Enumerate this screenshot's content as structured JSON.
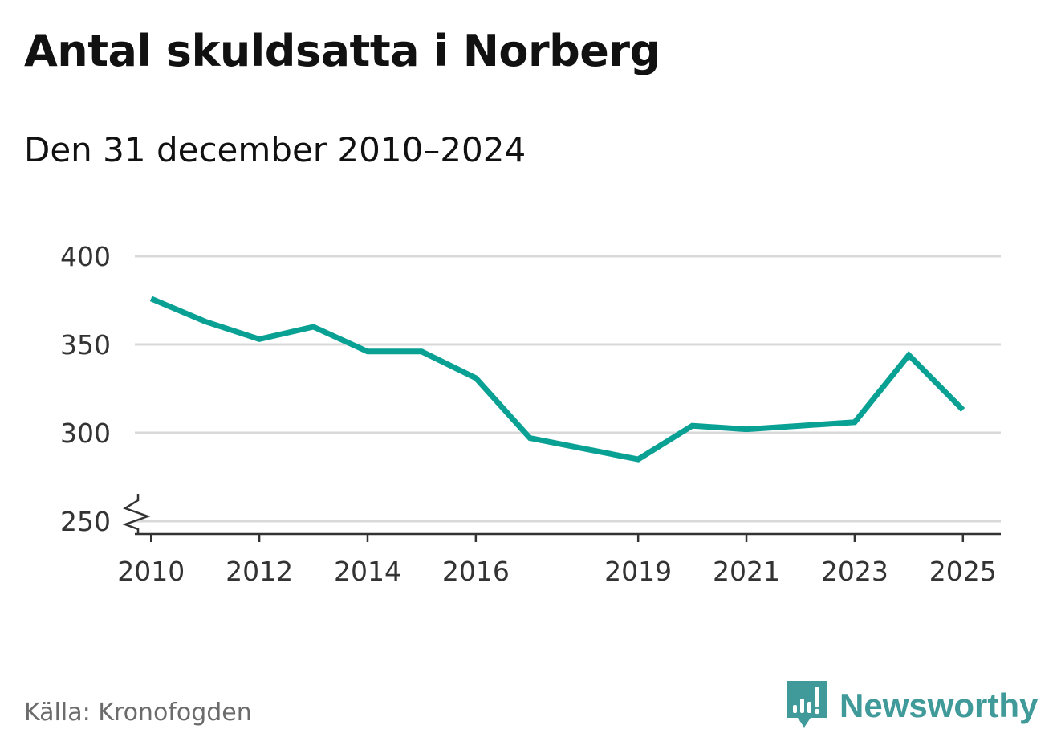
{
  "title": "Antal skuldsatta i Norberg",
  "subtitle": "Den 31 december 2010–2024",
  "source": "Källa: Kronofogden",
  "brand": {
    "name": "Newsworthy",
    "icon": "newsworthy-logo-icon",
    "color": "#3f9a99"
  },
  "colors": {
    "line": "#0aa195",
    "grid": "#d9d9d9",
    "axis": "#333333",
    "tick_text": "#333333"
  },
  "chart_data": {
    "type": "line",
    "title": "Antal skuldsatta i Norberg",
    "subtitle": "Den 31 december 2010–2024",
    "xlabel": "",
    "ylabel": "",
    "xlim": [
      2009.7,
      2025.7
    ],
    "ylim": [
      250,
      400
    ],
    "axis_break": true,
    "grid": true,
    "x_ticks": [
      2010,
      2012,
      2014,
      2016,
      2019,
      2021,
      2023,
      2025
    ],
    "y_ticks": [
      250,
      300,
      350,
      400
    ],
    "series": [
      {
        "name": "Antal skuldsatta",
        "x": [
          2010,
          2011,
          2012,
          2013,
          2014,
          2015,
          2016,
          2017,
          2018,
          2019,
          2020,
          2021,
          2022,
          2023,
          2024,
          2025
        ],
        "values": [
          376,
          363,
          353,
          360,
          346,
          346,
          331,
          297,
          291,
          285,
          304,
          302,
          304,
          306,
          344,
          313
        ]
      }
    ]
  }
}
